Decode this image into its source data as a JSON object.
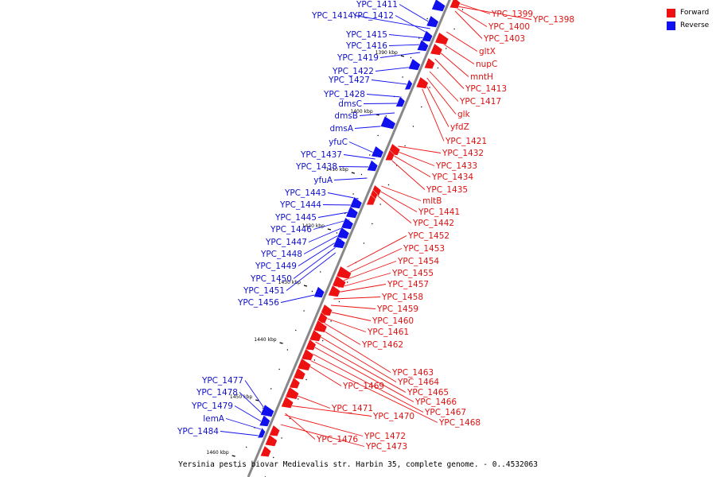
{
  "legend": {
    "forward_label": "Forward",
    "reverse_label": "Reverse",
    "forward_color": "#ee1111",
    "reverse_color": "#1111ee"
  },
  "caption": "Yersinia pestis biovar Medievalis str. Harbin 35, complete genome. - 0..4532063",
  "ticks": [
    "1390 kbp",
    "1400 kbp",
    "1410 kbp",
    "1420 kbp",
    "1430 kbp",
    "1440 kbp",
    "1450 kbp",
    "1460 kbp"
  ],
  "forward_genes": [
    "YPC_1399",
    "YPC_1398",
    "YPC_1400",
    "YPC_1403",
    "gltX",
    "nupC",
    "mntH",
    "YPC_1413",
    "YPC_1417",
    "glk",
    "yfdZ",
    "YPC_1421",
    "YPC_1432",
    "YPC_1433",
    "YPC_1434",
    "YPC_1435",
    "mltB",
    "YPC_1441",
    "YPC_1442",
    "YPC_1452",
    "YPC_1453",
    "YPC_1454",
    "YPC_1455",
    "YPC_1457",
    "YPC_1458",
    "YPC_1459",
    "YPC_1460",
    "YPC_1461",
    "YPC_1462",
    "YPC_1463",
    "YPC_1464",
    "YPC_1465",
    "YPC_1466",
    "YPC_1467",
    "YPC_1468",
    "YPC_1469",
    "YPC_1471",
    "YPC_1470",
    "YPC_1472",
    "YPC_1473",
    "YPC_1476"
  ],
  "reverse_genes": [
    "YPC_1411",
    "YPC_1414",
    "YPC_1412",
    "YPC_1415",
    "YPC_1416",
    "YPC_1419",
    "YPC_1422",
    "YPC_1427",
    "YPC_1428",
    "dmsC",
    "dmsB",
    "dmsA",
    "yfuC",
    "YPC_1437",
    "YPC_1438",
    "yfuA",
    "YPC_1443",
    "YPC_1444",
    "YPC_1445",
    "YPC_1446",
    "YPC_1447",
    "YPC_1448",
    "YPC_1449",
    "YPC_1450",
    "YPC_1451",
    "YPC_1456",
    "YPC_1477",
    "YPC_1478",
    "YPC_1479",
    "lemA",
    "YPC_1484"
  ]
}
